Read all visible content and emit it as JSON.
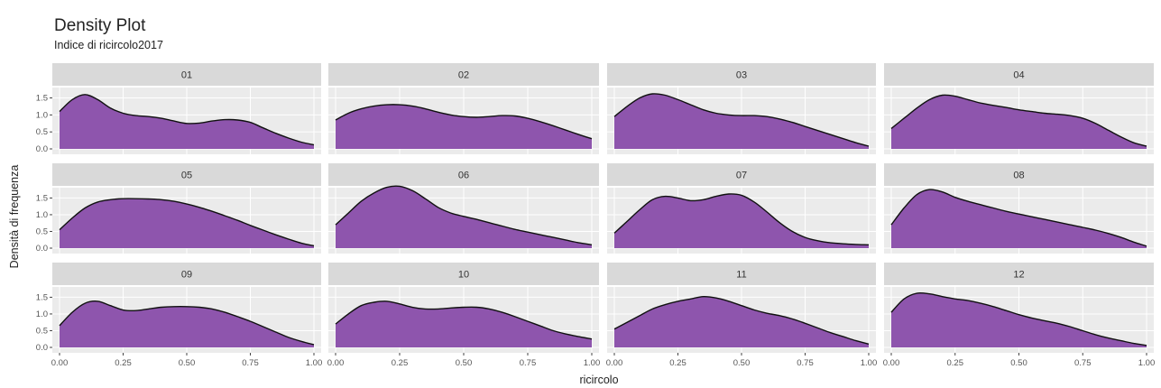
{
  "colors": {
    "fill": "#8e55ad",
    "line": "#111111",
    "panel_bg": "#ebebeb",
    "strip_bg": "#d9d9d9",
    "grid": "#ffffff"
  },
  "chart_data": {
    "type": "area",
    "title": "Density Plot",
    "subtitle": "Indice di ricircolo2017",
    "xlabel": "ricircolo",
    "ylabel": "Densità di frequenza",
    "xlim": [
      0,
      1
    ],
    "ylim": [
      0,
      1.7
    ],
    "x_ticks": [
      0,
      0.25,
      0.5,
      0.75,
      1
    ],
    "x_tick_labels": [
      "0.00",
      "0.25",
      "0.50",
      "0.75",
      "1.00"
    ],
    "y_ticks": [
      0,
      0.5,
      1,
      1.5
    ],
    "y_tick_labels": [
      "0.0",
      "0.5",
      "1.0",
      "1.5"
    ],
    "grid": true,
    "x": [
      0,
      0.05,
      0.1,
      0.15,
      0.2,
      0.25,
      0.3,
      0.35,
      0.4,
      0.45,
      0.5,
      0.55,
      0.6,
      0.65,
      0.7,
      0.75,
      0.8,
      0.85,
      0.9,
      0.95,
      1.0
    ],
    "panels": [
      {
        "label": "01",
        "density": [
          1.1,
          1.45,
          1.6,
          1.45,
          1.2,
          1.05,
          0.98,
          0.95,
          0.9,
          0.82,
          0.75,
          0.76,
          0.82,
          0.86,
          0.85,
          0.78,
          0.62,
          0.46,
          0.32,
          0.2,
          0.12
        ]
      },
      {
        "label": "02",
        "density": [
          0.85,
          1.05,
          1.18,
          1.26,
          1.3,
          1.3,
          1.26,
          1.18,
          1.08,
          1.0,
          0.95,
          0.93,
          0.95,
          0.98,
          0.97,
          0.9,
          0.8,
          0.68,
          0.55,
          0.42,
          0.3
        ]
      },
      {
        "label": "03",
        "density": [
          0.95,
          1.25,
          1.5,
          1.62,
          1.58,
          1.45,
          1.3,
          1.15,
          1.05,
          1.0,
          0.98,
          0.98,
          0.95,
          0.88,
          0.78,
          0.66,
          0.54,
          0.42,
          0.3,
          0.18,
          0.08
        ]
      },
      {
        "label": "04",
        "density": [
          0.6,
          0.9,
          1.2,
          1.45,
          1.58,
          1.55,
          1.45,
          1.35,
          1.28,
          1.22,
          1.15,
          1.1,
          1.05,
          1.02,
          0.98,
          0.9,
          0.75,
          0.55,
          0.35,
          0.18,
          0.08
        ]
      },
      {
        "label": "05",
        "density": [
          0.55,
          0.9,
          1.2,
          1.38,
          1.45,
          1.48,
          1.48,
          1.47,
          1.45,
          1.4,
          1.32,
          1.22,
          1.1,
          0.97,
          0.83,
          0.68,
          0.54,
          0.4,
          0.27,
          0.15,
          0.07
        ]
      },
      {
        "label": "06",
        "density": [
          0.7,
          1.05,
          1.4,
          1.65,
          1.82,
          1.85,
          1.72,
          1.48,
          1.22,
          1.05,
          0.95,
          0.86,
          0.76,
          0.66,
          0.56,
          0.48,
          0.4,
          0.32,
          0.24,
          0.16,
          0.1
        ]
      },
      {
        "label": "07",
        "density": [
          0.45,
          0.8,
          1.15,
          1.45,
          1.55,
          1.5,
          1.42,
          1.45,
          1.55,
          1.62,
          1.58,
          1.38,
          1.08,
          0.76,
          0.5,
          0.32,
          0.22,
          0.16,
          0.13,
          0.11,
          0.1
        ]
      },
      {
        "label": "08",
        "density": [
          0.7,
          1.2,
          1.6,
          1.75,
          1.68,
          1.52,
          1.4,
          1.3,
          1.2,
          1.1,
          1.02,
          0.94,
          0.86,
          0.78,
          0.7,
          0.62,
          0.54,
          0.44,
          0.32,
          0.18,
          0.06
        ]
      },
      {
        "label": "09",
        "density": [
          0.65,
          1.05,
          1.32,
          1.38,
          1.25,
          1.12,
          1.1,
          1.15,
          1.2,
          1.22,
          1.22,
          1.2,
          1.15,
          1.05,
          0.92,
          0.78,
          0.62,
          0.46,
          0.3,
          0.18,
          0.08
        ]
      },
      {
        "label": "10",
        "density": [
          0.7,
          1.0,
          1.25,
          1.35,
          1.38,
          1.3,
          1.2,
          1.15,
          1.15,
          1.18,
          1.2,
          1.2,
          1.15,
          1.05,
          0.92,
          0.78,
          0.64,
          0.5,
          0.4,
          0.32,
          0.25
        ]
      },
      {
        "label": "11",
        "density": [
          0.55,
          0.75,
          0.95,
          1.15,
          1.28,
          1.38,
          1.45,
          1.52,
          1.48,
          1.38,
          1.25,
          1.12,
          1.02,
          0.95,
          0.85,
          0.72,
          0.58,
          0.44,
          0.32,
          0.2,
          0.1
        ]
      },
      {
        "label": "12",
        "density": [
          1.05,
          1.45,
          1.62,
          1.6,
          1.52,
          1.45,
          1.4,
          1.32,
          1.22,
          1.1,
          0.98,
          0.88,
          0.8,
          0.72,
          0.62,
          0.5,
          0.38,
          0.28,
          0.2,
          0.12,
          0.06
        ]
      }
    ]
  }
}
